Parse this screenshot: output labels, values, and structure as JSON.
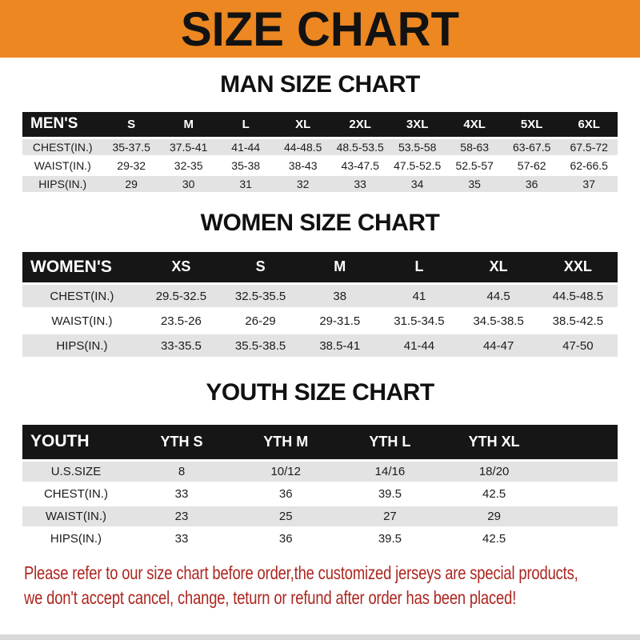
{
  "banner": {
    "title": "SIZE CHART"
  },
  "colors": {
    "banner_bg": "#EC8722",
    "header_bar_bg": "#161616",
    "row_shade": "#E3E3E3",
    "disclaimer_red": "#AC2620"
  },
  "men": {
    "heading": "MAN SIZE CHART",
    "label": "MEN'S",
    "columns": [
      "S",
      "M",
      "L",
      "XL",
      "2XL",
      "3XL",
      "4XL",
      "5XL",
      "6XL"
    ],
    "rows": [
      {
        "label": "CHEST(IN.)",
        "values": [
          "35-37.5",
          "37.5-41",
          "41-44",
          "44-48.5",
          "48.5-53.5",
          "53.5-58",
          "58-63",
          "63-67.5",
          "67.5-72"
        ]
      },
      {
        "label": "WAIST(IN.)",
        "values": [
          "29-32",
          "32-35",
          "35-38",
          "38-43",
          "43-47.5",
          "47.5-52.5",
          "52.5-57",
          "57-62",
          "62-66.5"
        ]
      },
      {
        "label": "HIPS(IN.)",
        "values": [
          "29",
          "30",
          "31",
          "32",
          "33",
          "34",
          "35",
          "36",
          "37"
        ]
      }
    ]
  },
  "women": {
    "heading": "WOMEN SIZE CHART",
    "label": "WOMEN'S",
    "columns": [
      "XS",
      "S",
      "M",
      "L",
      "XL",
      "XXL"
    ],
    "rows": [
      {
        "label": "CHEST(IN.)",
        "values": [
          "29.5-32.5",
          "32.5-35.5",
          "38",
          "41",
          "44.5",
          "44.5-48.5"
        ]
      },
      {
        "label": "WAIST(IN.)",
        "values": [
          "23.5-26",
          "26-29",
          "29-31.5",
          "31.5-34.5",
          "34.5-38.5",
          "38.5-42.5"
        ]
      },
      {
        "label": "HIPS(IN.)",
        "values": [
          "33-35.5",
          "35.5-38.5",
          "38.5-41",
          "41-44",
          "44-47",
          "47-50"
        ]
      }
    ]
  },
  "youth": {
    "heading": "YOUTH SIZE CHART",
    "label": "YOUTH",
    "columns": [
      "YTH S",
      "YTH M",
      "YTH L",
      "YTH XL"
    ],
    "rows": [
      {
        "label": "U.S.SIZE",
        "values": [
          "8",
          "10/12",
          "14/16",
          "18/20"
        ]
      },
      {
        "label": "CHEST(IN.)",
        "values": [
          "33",
          "36",
          "39.5",
          "42.5"
        ]
      },
      {
        "label": "WAIST(IN.)",
        "values": [
          "23",
          "25",
          "27",
          "29"
        ]
      },
      {
        "label": "HIPS(IN.)",
        "values": [
          "33",
          "36",
          "39.5",
          "42.5"
        ]
      }
    ]
  },
  "disclaimer": {
    "line1": "Please refer to our size chart before order,the customized jerseys are special products,",
    "line2": "we don't accept cancel, change, teturn or refund after order has been placed!"
  }
}
